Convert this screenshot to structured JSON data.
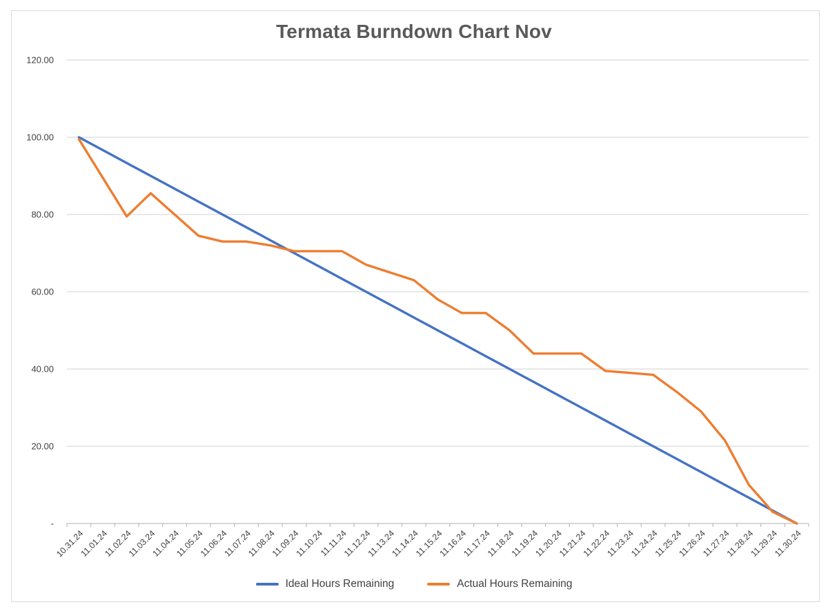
{
  "chart_data": {
    "type": "line",
    "title": "Termata Burndown Chart Nov",
    "categories": [
      "10.31.24",
      "11.01.24",
      "11.02.24",
      "11.03.24",
      "11.04.24",
      "11.05.24",
      "11.06.24",
      "11.07.24",
      "11.08.24",
      "11.09.24",
      "11.10.24",
      "11.11.24",
      "11.12.24",
      "11.13.24",
      "11.14.24",
      "11.15.24",
      "11.16.24",
      "11.17.24",
      "11.18.24",
      "11.19.24",
      "11.20.24",
      "11.21.24",
      "11.22.24",
      "11.23.24",
      "11.24.24",
      "11.25.24",
      "11.26.24",
      "11.27.24",
      "11.28.24",
      "11.29.24",
      "11.30.24"
    ],
    "series": [
      {
        "name": "Ideal Hours Remaining",
        "color": "#4472C4",
        "values": [
          100,
          96.67,
          93.33,
          90,
          86.67,
          83.33,
          80,
          76.67,
          73.33,
          70,
          66.67,
          63.33,
          60,
          56.67,
          53.33,
          50,
          46.67,
          43.33,
          40,
          36.67,
          33.33,
          30,
          26.67,
          23.33,
          20,
          16.67,
          13.33,
          10,
          6.67,
          3.33,
          0
        ]
      },
      {
        "name": "Actual Hours Remaining",
        "color": "#ED7D31",
        "values": [
          99.5,
          89.5,
          79.5,
          85.5,
          80,
          74.5,
          73,
          73,
          72,
          70.5,
          70.5,
          70.5,
          67,
          65,
          63,
          58,
          54.5,
          54.5,
          50,
          44,
          44,
          44,
          39.5,
          39,
          38.5,
          34,
          29,
          21.5,
          10,
          3,
          0
        ]
      }
    ],
    "y_axis": {
      "min": 0,
      "max": 120,
      "step": 20,
      "tick_labels": [
        "-",
        "20.00",
        "40.00",
        "60.00",
        "80.00",
        "100.00",
        "120.00"
      ]
    },
    "x_axis": {
      "label_rotation_deg": 45
    },
    "legend_position": "bottom",
    "grid": true,
    "colors": {
      "gridline": "#d9d9d9",
      "axis_line": "#bfbfbf",
      "title_text": "#595959",
      "axis_text": "#404040"
    }
  }
}
